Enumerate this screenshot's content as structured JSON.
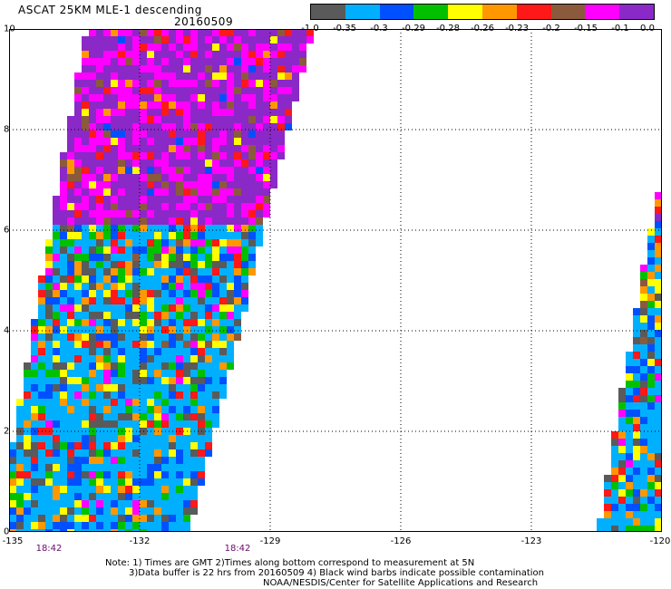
{
  "header": {
    "title": "ASCAT 25KM MLE-1 descending",
    "date": "20160509"
  },
  "colorbar": {
    "colors": [
      "#5a5a5a",
      "#00b0ff",
      "#0050ff",
      "#00c000",
      "#ffff00",
      "#ff9800",
      "#ff1818",
      "#8b5a3c",
      "#ff00ff",
      "#8b28c8"
    ],
    "labels": [
      "-1.0",
      "-0.35",
      "-0.3",
      "-0.29",
      "-0.28",
      "-0.26",
      "-0.23",
      "-0.2",
      "-0.15",
      "-0.1",
      "0.0"
    ]
  },
  "axes": {
    "x_ticks": [
      "-135",
      "-132",
      "-129",
      "-126",
      "-123",
      "-120"
    ],
    "y_ticks": [
      "0",
      "2",
      "4",
      "6",
      "8",
      "10"
    ],
    "times": [
      "18:42",
      "18:42"
    ]
  },
  "notes": {
    "line1": "Note: 1) Times are GMT 2)Times along bottom correspond to measurement at 5N",
    "line2": "3)Data buffer is 22 hrs from 20160509 4) Black wind barbs indicate possible contamination",
    "line3": "NOAA/NESDIS/Center for Satellite Applications and Research"
  }
}
